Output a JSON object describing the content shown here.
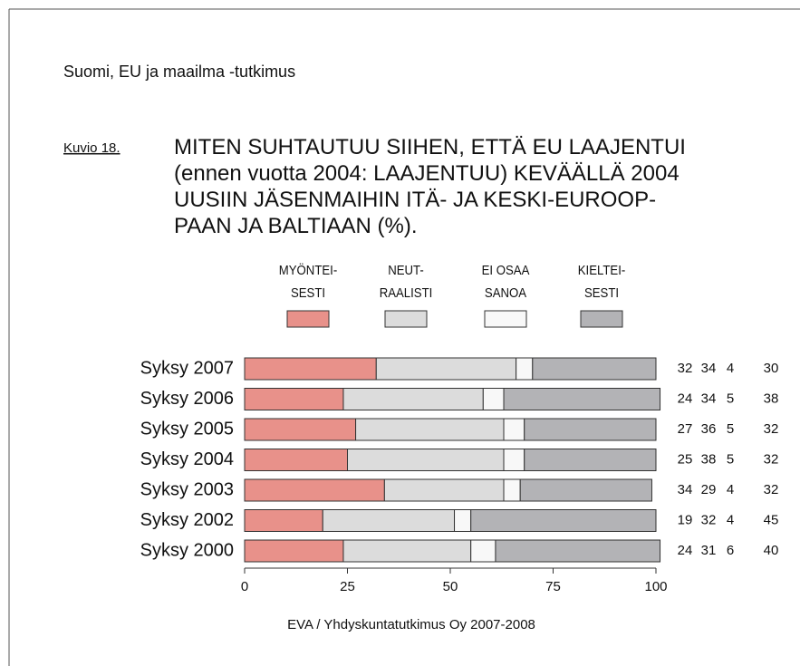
{
  "header": "Suomi, EU ja maailma -tutkimus",
  "figure_label": "Kuvio 18.",
  "chart_data": {
    "type": "stacked-bar-horizontal",
    "title": "MITEN SUHTAUTUU SIIHEN, ETTÄ EU LAAJENTUI\n(ennen vuotta 2004: LAAJENTUU) KEVÄÄLLÄ 2004\nUUSIIN JÄSENMAIHIN ITÄ- JA KESKI-EUROOP-\nPAAN JA BALTIAAN (%).",
    "categories": [
      "Syksy 2007",
      "Syksy 2006",
      "Syksy 2005",
      "Syksy 2004",
      "Syksy 2003",
      "Syksy 2002",
      "Syksy 2000"
    ],
    "series": [
      {
        "name": "MYÖNTEI-\nSESTI",
        "color": "#e8918a",
        "values": [
          32,
          24,
          27,
          25,
          34,
          19,
          24
        ]
      },
      {
        "name": "NEUT-\nRAALISTI",
        "color": "#dcdcdc",
        "values": [
          34,
          34,
          36,
          38,
          29,
          32,
          31
        ]
      },
      {
        "name": "EI OSAA\nSANOA",
        "color": "#f8f8f8",
        "values": [
          4,
          5,
          5,
          5,
          4,
          4,
          6
        ]
      },
      {
        "name": "KIELTEI-\nSESTI",
        "color": "#b3b3b6",
        "values": [
          30,
          38,
          32,
          32,
          32,
          45,
          40
        ]
      }
    ],
    "xlim": [
      0,
      100
    ],
    "xticks": [
      0,
      25,
      50,
      75,
      100
    ],
    "source": "EVA / Yhdyskuntatutkimus Oy 2007-2008"
  }
}
